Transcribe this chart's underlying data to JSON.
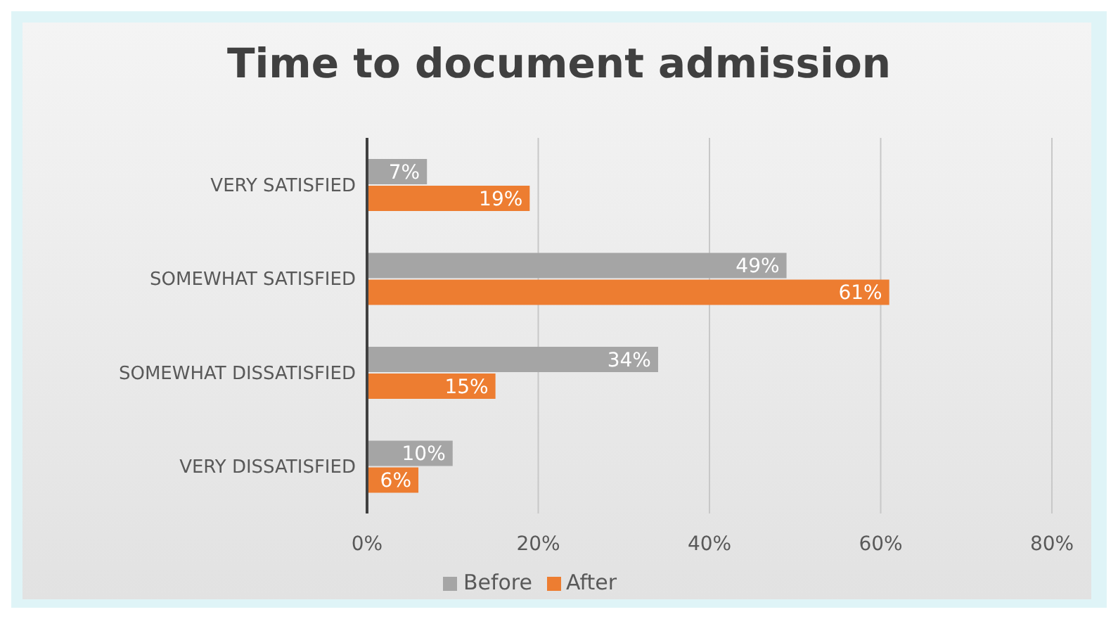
{
  "chart_data": {
    "type": "bar",
    "orientation": "horizontal",
    "title": "Time to document admission",
    "categories": [
      "VERY SATISFIED",
      "SOMEWHAT SATISFIED",
      "SOMEWHAT DISSATISFIED",
      "VERY DISSATISFIED"
    ],
    "series": [
      {
        "name": "Before",
        "color": "#a5a5a5",
        "values": [
          7,
          49,
          34,
          10
        ],
        "value_labels": [
          "7%",
          "49%",
          "34%",
          "10%"
        ]
      },
      {
        "name": "After",
        "color": "#ed7d31",
        "values": [
          19,
          61,
          15,
          6
        ],
        "value_labels": [
          "19%",
          "61%",
          "15%",
          "6%"
        ]
      }
    ],
    "xlim": [
      0,
      80
    ],
    "xticks": [
      {
        "value": 0,
        "label": "0%"
      },
      {
        "value": 20,
        "label": "20%"
      },
      {
        "value": 40,
        "label": "40%"
      },
      {
        "value": 60,
        "label": "60%"
      },
      {
        "value": 80,
        "label": "80%"
      }
    ],
    "grid": "x",
    "legend": "bottom"
  }
}
